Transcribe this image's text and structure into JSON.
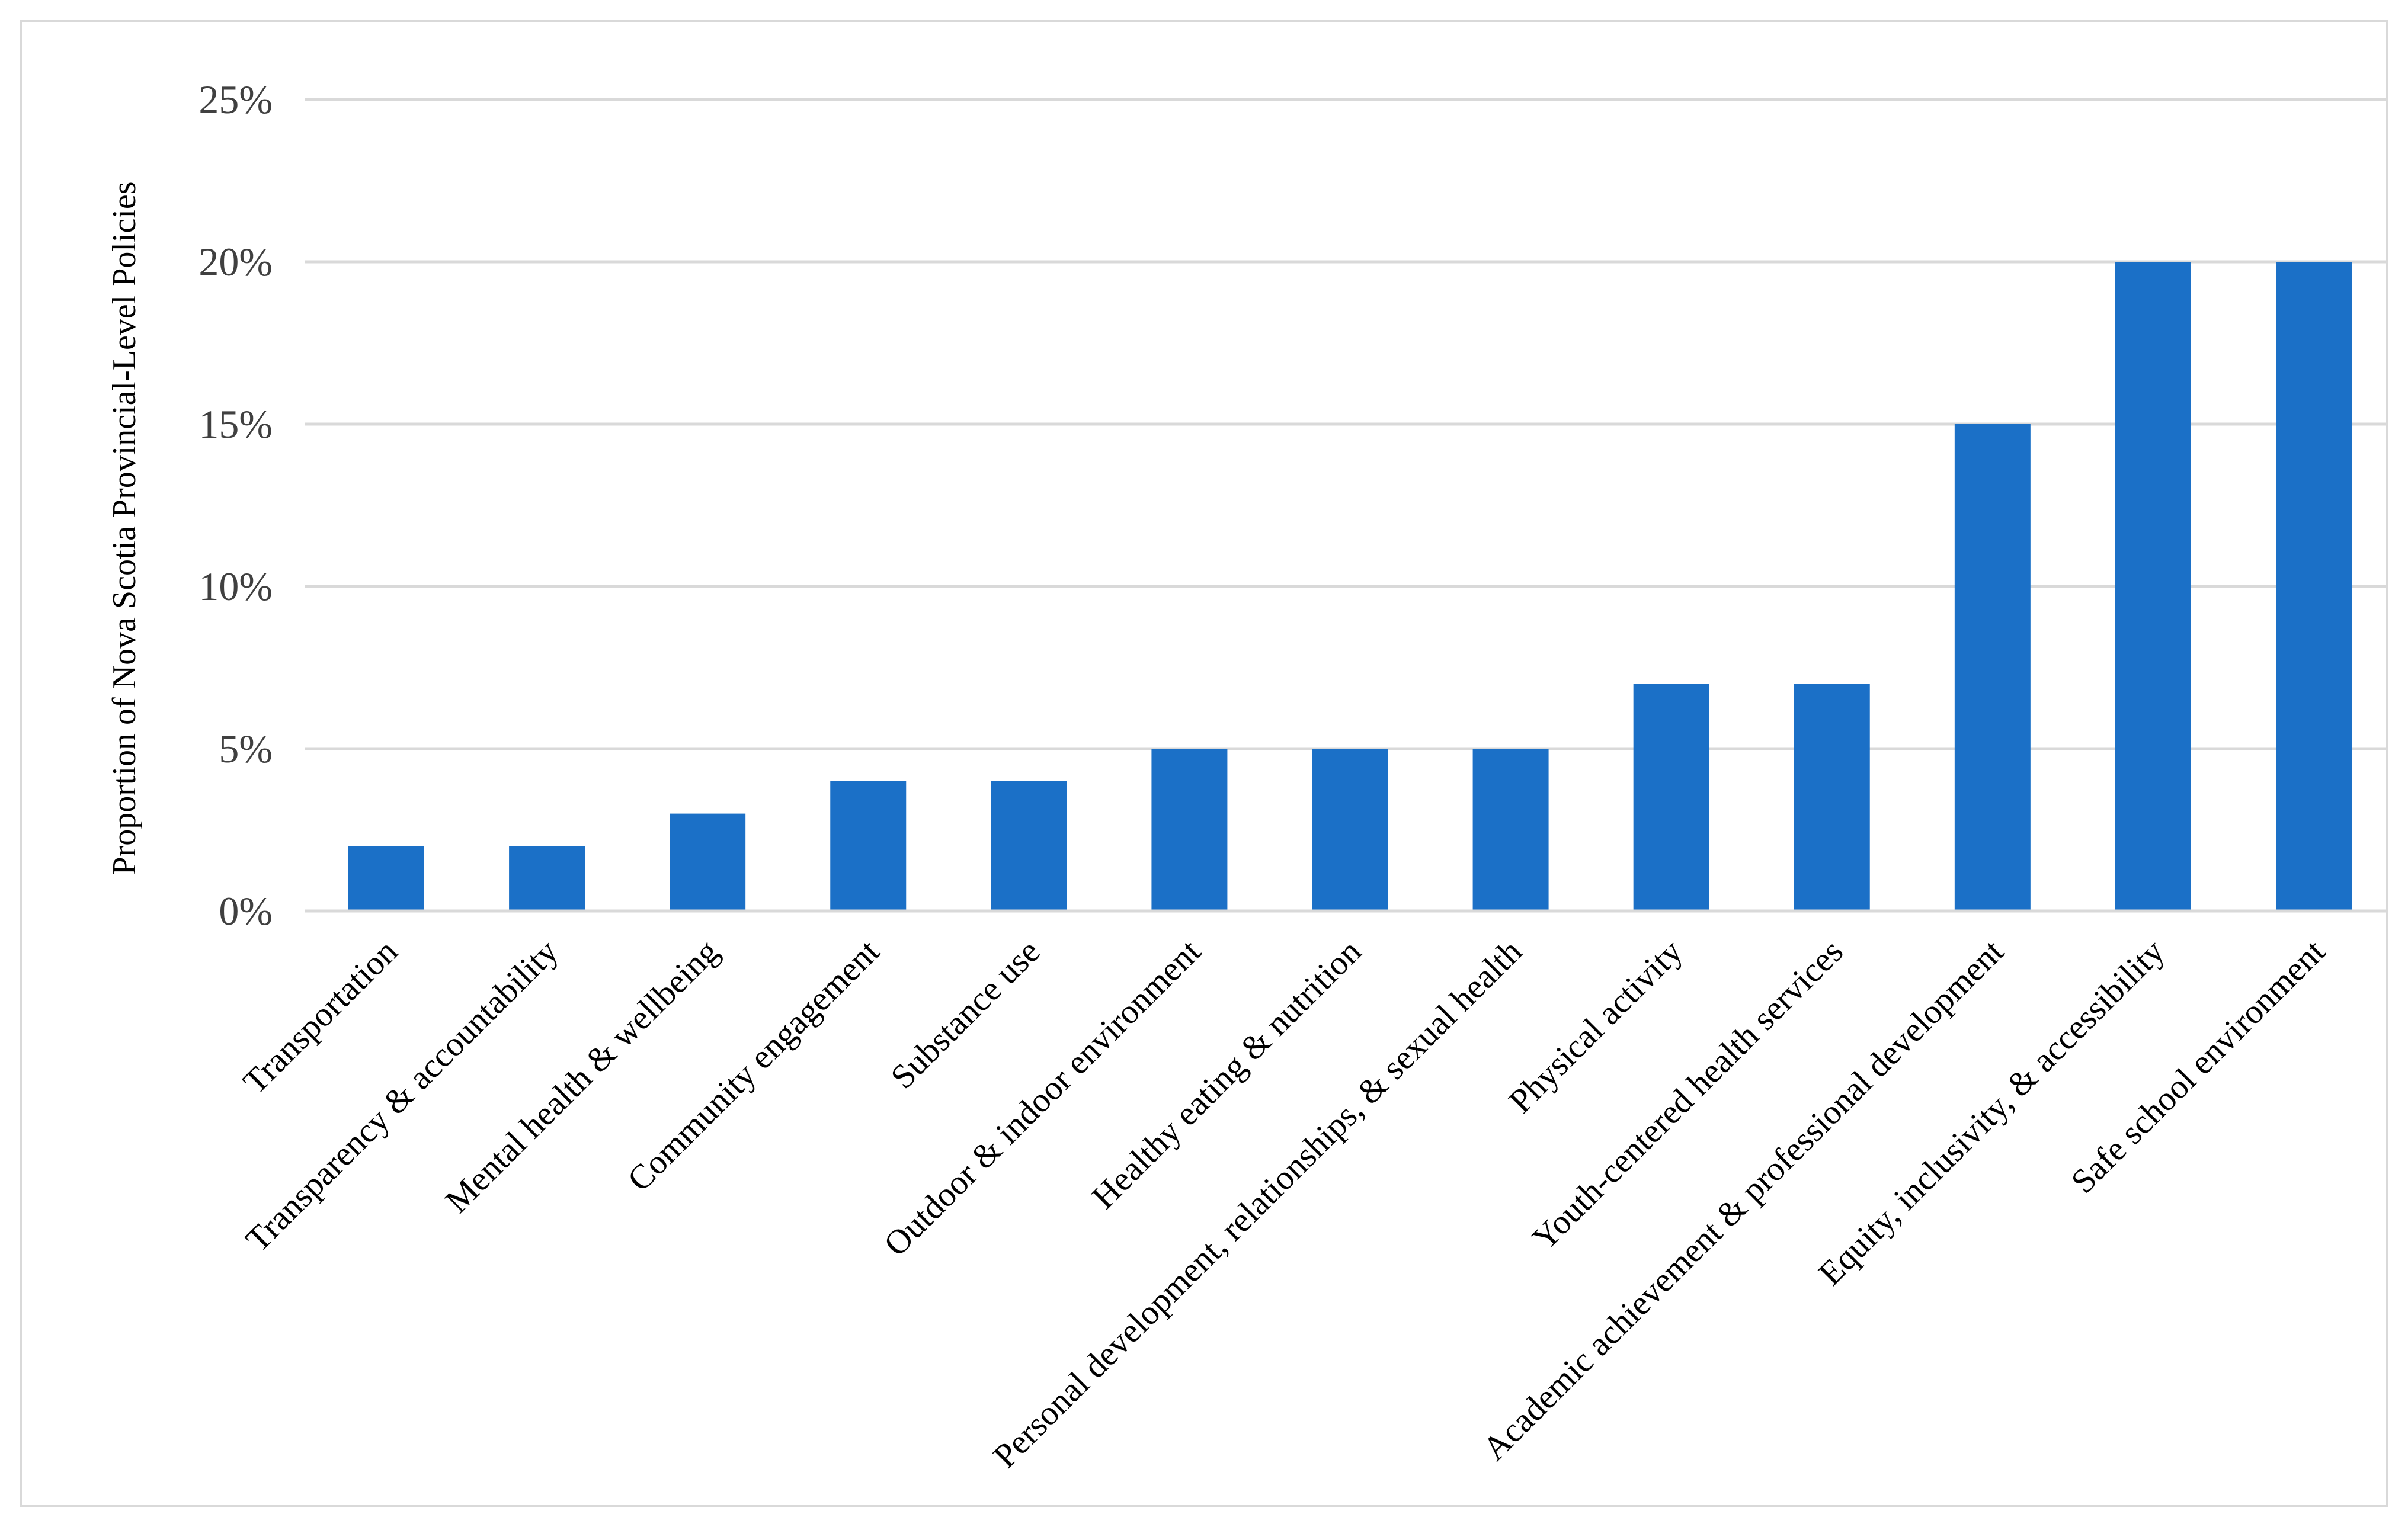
{
  "chart_data": {
    "type": "bar",
    "title": "",
    "xlabel": "",
    "ylabel": "Proportion of Nova Scotia Provincial-Level Policies",
    "categories": [
      "Transportation",
      "Transparency & accountability",
      "Mental health & wellbeing",
      "Community engagement",
      "Substance use",
      "Outdoor & indoor environment",
      "Healthy eating & nutrition",
      "Personal  development, relationships, & sexual health",
      "Physical activity",
      "Youth-centered health services",
      "Academic achievement & professional development",
      "Equity, inclusivity, & accessibility",
      "Safe school environment"
    ],
    "values": [
      2,
      2,
      3,
      4,
      4,
      5,
      5,
      5,
      7,
      7,
      15,
      20,
      20
    ],
    "ylim": [
      0,
      25
    ],
    "yticks": [
      0,
      5,
      10,
      15,
      20,
      25
    ],
    "ytick_labels": [
      "0%",
      "5%",
      "10%",
      "15%",
      "20%",
      "25%"
    ],
    "grid": true,
    "legend": "none",
    "colors": {
      "bar": "#1b70c7",
      "grid": "#d9d9d9",
      "axis": "#d9d9d9"
    }
  }
}
